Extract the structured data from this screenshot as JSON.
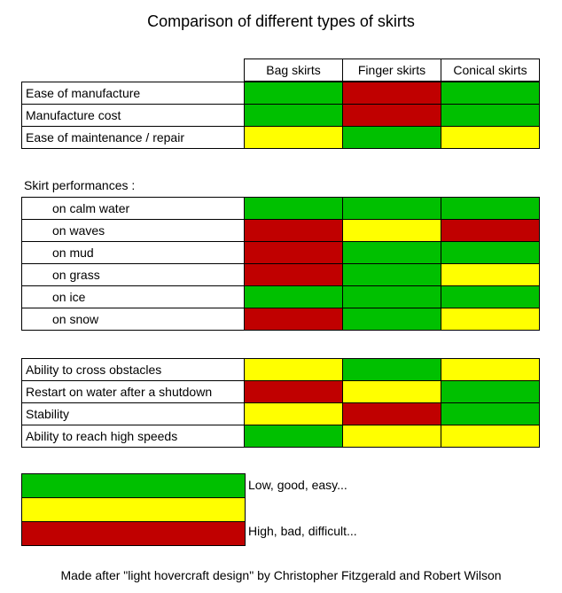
{
  "title": "Comparison of different types of skirts",
  "columns": [
    "Bag skirts",
    "Finger skirts",
    "Conical skirts"
  ],
  "colors": {
    "green": "#00c000",
    "yellow": "#ffff00",
    "red": "#c00000"
  },
  "section1": {
    "rows": [
      {
        "label": "Ease of manufacture",
        "values": [
          "green",
          "red",
          "green"
        ]
      },
      {
        "label": "Manufacture cost",
        "values": [
          "green",
          "red",
          "green"
        ]
      },
      {
        "label": "Ease of maintenance / repair",
        "values": [
          "yellow",
          "green",
          "yellow"
        ]
      }
    ]
  },
  "section2": {
    "heading": "Skirt performances :",
    "rows": [
      {
        "label": "on calm water",
        "values": [
          "green",
          "green",
          "green"
        ]
      },
      {
        "label": "on waves",
        "values": [
          "red",
          "yellow",
          "red"
        ]
      },
      {
        "label": "on mud",
        "values": [
          "red",
          "green",
          "green"
        ]
      },
      {
        "label": "on grass",
        "values": [
          "red",
          "green",
          "yellow"
        ]
      },
      {
        "label": "on ice",
        "values": [
          "green",
          "green",
          "green"
        ]
      },
      {
        "label": "on snow",
        "values": [
          "red",
          "green",
          "yellow"
        ]
      }
    ]
  },
  "section3": {
    "rows": [
      {
        "label": "Ability to cross obstacles",
        "values": [
          "yellow",
          "green",
          "yellow"
        ]
      },
      {
        "label": "Restart on water after a shutdown",
        "values": [
          "red",
          "yellow",
          "green"
        ]
      },
      {
        "label": "Stability",
        "values": [
          "yellow",
          "red",
          "green"
        ]
      },
      {
        "label": "Ability to reach high speeds",
        "values": [
          "green",
          "yellow",
          "yellow"
        ]
      }
    ]
  },
  "legend": [
    {
      "color": "green",
      "label": "Low, good, easy..."
    },
    {
      "color": "yellow",
      "label": ""
    },
    {
      "color": "red",
      "label": "High, bad, difficult..."
    }
  ],
  "footer": "Made after \"light hovercraft design\" by Christopher Fitzgerald and Robert Wilson"
}
